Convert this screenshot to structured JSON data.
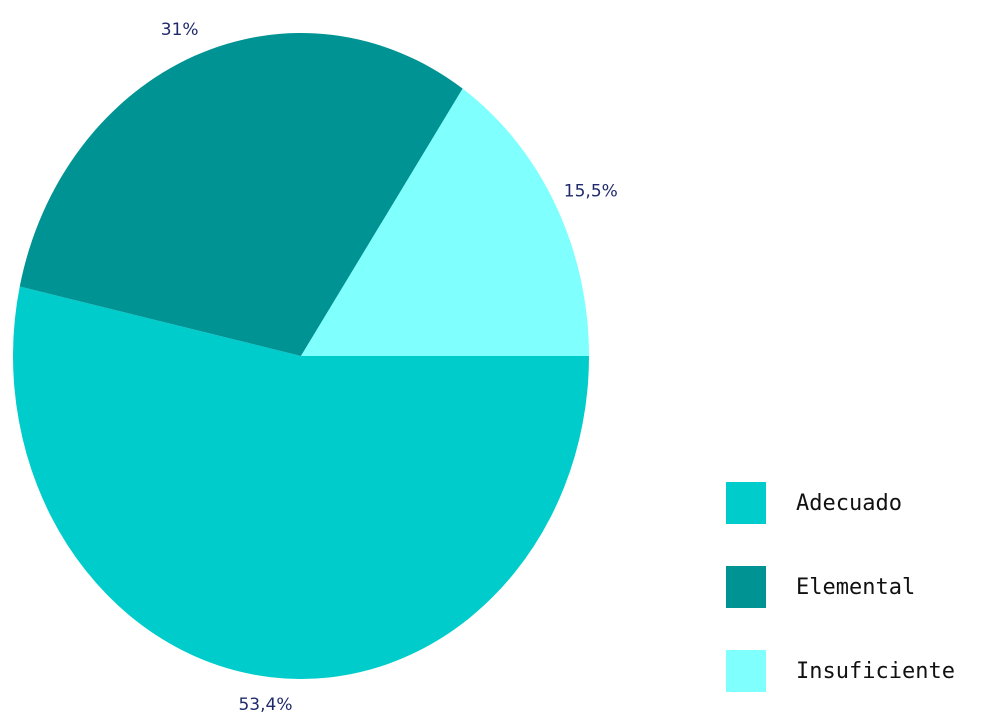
{
  "chart_data": {
    "type": "pie",
    "categories": [
      "Adecuado",
      "Elemental",
      "Insuficiente"
    ],
    "values": [
      53.4,
      31,
      15.5
    ],
    "data_labels": [
      "53,4%",
      "31%",
      "15,5%"
    ],
    "colors": [
      "#00cccc",
      "#009393",
      "#80ffff"
    ],
    "legend_placement": "bottom-right",
    "start_angle_deg": 0,
    "direction": "clockwise"
  }
}
